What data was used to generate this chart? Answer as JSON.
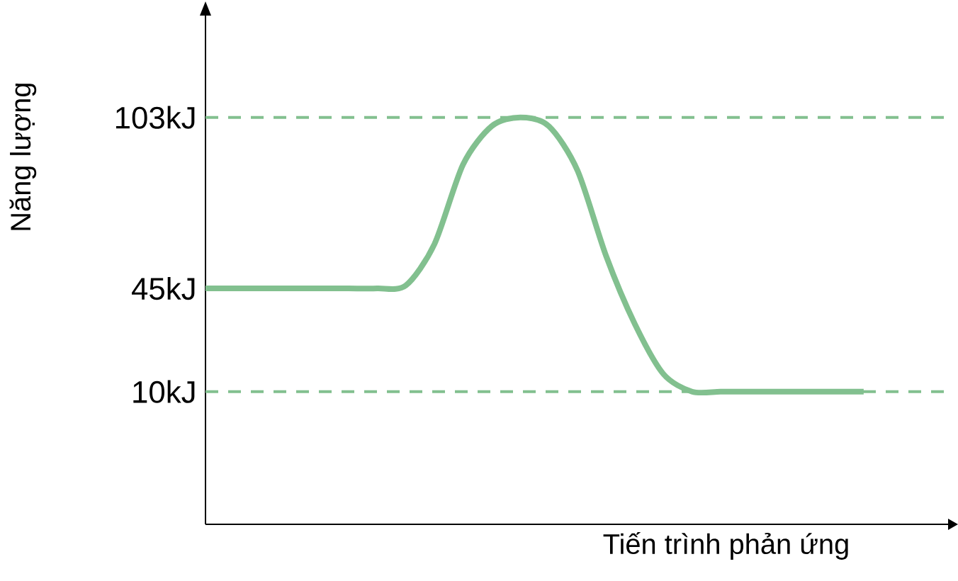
{
  "chart_data": {
    "type": "line",
    "xlabel": "Tiến trình  phản ứng",
    "ylabel": "Năng lượng",
    "categories": [
      null,
      null,
      null,
      null,
      null,
      null,
      null,
      null,
      null,
      null,
      null,
      null,
      null,
      null,
      null,
      null,
      null,
      null,
      null,
      null,
      null,
      null,
      null,
      null,
      null,
      null,
      null
    ],
    "series": [
      {
        "color": "#82c08f",
        "values": [
          45,
          45,
          45,
          45,
          45,
          45,
          45,
          46,
          60,
          87,
          100,
          103,
          100,
          85,
          56,
          33,
          16,
          10,
          10,
          10,
          10,
          10,
          10,
          10,
          null,
          null,
          null
        ]
      }
    ],
    "ylim": [
      -35,
      138
    ],
    "yticks": [
      {
        "value": 10,
        "label": "10kJ"
      },
      {
        "value": 45,
        "label": "45kJ"
      },
      {
        "value": 103,
        "label": "103kJ"
      }
    ],
    "ref_lines": [
      {
        "axis": "y",
        "value": 103,
        "color": "#82c08f",
        "line_style": "dashed"
      },
      {
        "axis": "y",
        "value": 10,
        "color": "#82c08f",
        "line_style": "dashed"
      }
    ],
    "grid": false,
    "marker": "none",
    "line_style": "solid",
    "tick_labels": "y"
  }
}
